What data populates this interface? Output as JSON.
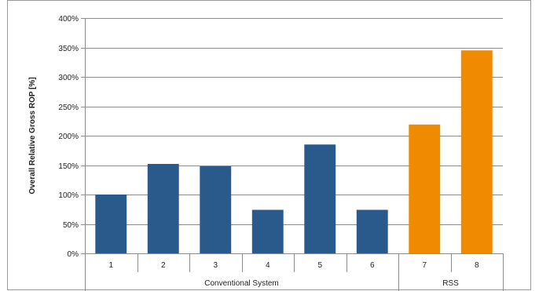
{
  "chart_data": {
    "type": "bar",
    "title": "",
    "xlabel": "",
    "ylabel": "Overall Relative Gross ROP [%]",
    "ylim": [
      0,
      400
    ],
    "yticks": [
      "0%",
      "50%",
      "100%",
      "150%",
      "200%",
      "250%",
      "300%",
      "350%",
      "400%"
    ],
    "grid": true,
    "categories": [
      "1",
      "2",
      "3",
      "4",
      "5",
      "6",
      "7",
      "8"
    ],
    "groups": [
      {
        "label": "Conventional System",
        "categories": [
          "1",
          "2",
          "3",
          "4",
          "5",
          "6"
        ]
      },
      {
        "label": "RSS",
        "categories": [
          "7",
          "8"
        ]
      }
    ],
    "values": [
      100,
      152,
      148,
      74,
      185,
      74,
      219,
      345
    ],
    "colors": {
      "Conventional System": "#2a5a8c",
      "RSS": "#f08a00",
      "grid": "#8c8c8c",
      "axis": "#8c8c8c"
    }
  }
}
